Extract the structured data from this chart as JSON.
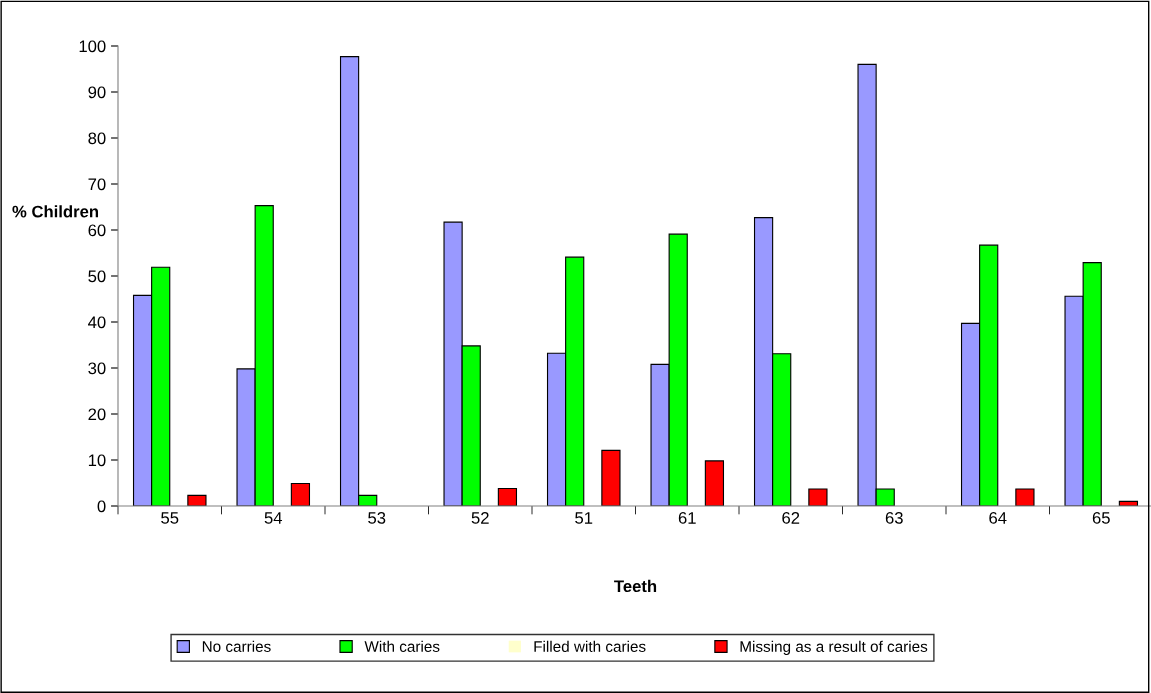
{
  "chart_data": {
    "type": "bar",
    "xlabel": "Teeth",
    "ylabel": "% Children",
    "categories": [
      "55",
      "54",
      "53",
      "52",
      "51",
      "61",
      "62",
      "63",
      "64",
      "65"
    ],
    "series": [
      {
        "name": "No carries",
        "color": "#9999ff",
        "values": [
          45.8,
          29.8,
          97.7,
          61.7,
          33.2,
          30.8,
          62.7,
          96.0,
          39.7,
          45.6
        ]
      },
      {
        "name": "With caries",
        "color": "#00ff00",
        "values": [
          51.9,
          65.3,
          2.3,
          34.8,
          54.1,
          59.1,
          33.1,
          3.7,
          56.7,
          52.9
        ]
      },
      {
        "name": "Filled with caries",
        "color": "#ffffcc",
        "values": [
          0,
          0,
          0,
          0,
          0,
          0,
          0,
          0,
          0,
          0
        ]
      },
      {
        "name": "Missing as a result of caries",
        "color": "#ff0000",
        "values": [
          2.3,
          4.9,
          0,
          3.8,
          12.1,
          9.8,
          3.7,
          0,
          3.7,
          1.0
        ]
      }
    ],
    "ylim": [
      0,
      100
    ],
    "yticks": [
      0,
      10,
      20,
      30,
      40,
      50,
      60,
      70,
      80,
      90,
      100
    ],
    "grid": false,
    "legend": "bottom"
  }
}
